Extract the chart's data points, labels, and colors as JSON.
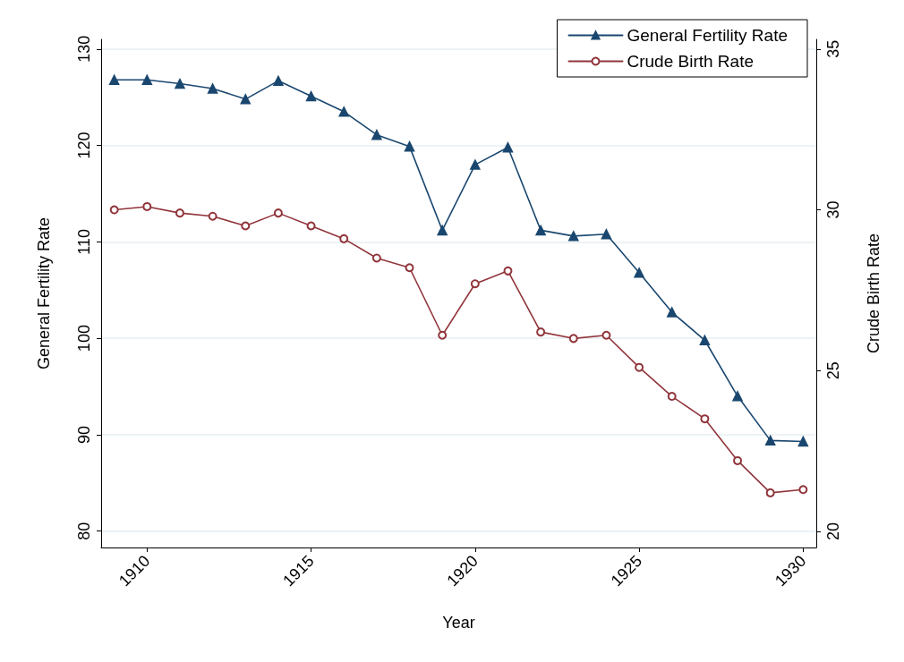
{
  "chart_data": {
    "type": "line",
    "xlabel": "Year",
    "ylabel": "General Fertility Rate",
    "y2label": "Crude Birth Rate",
    "x": [
      1909,
      1910,
      1911,
      1912,
      1913,
      1914,
      1915,
      1916,
      1917,
      1918,
      1919,
      1920,
      1921,
      1922,
      1923,
      1924,
      1925,
      1926,
      1927,
      1928,
      1929,
      1930
    ],
    "series": [
      {
        "name": "General Fertility Rate",
        "color": "#1a476f",
        "marker": "triangle",
        "values": [
          126.8,
          126.8,
          126.4,
          125.9,
          124.8,
          126.7,
          125.1,
          123.5,
          121.1,
          119.9,
          111.2,
          118.0,
          119.8,
          111.2,
          110.6,
          110.8,
          106.8,
          102.7,
          99.8,
          94.0,
          89.4,
          89.3
        ]
      },
      {
        "name": "Crude Birth Rate",
        "color": "#90353b",
        "marker": "circle",
        "axis": "y2",
        "values": [
          30.0,
          30.1,
          29.9,
          29.8,
          29.5,
          29.9,
          29.5,
          29.1,
          28.5,
          28.2,
          26.1,
          27.7,
          28.1,
          26.2,
          26.0,
          26.1,
          25.1,
          24.2,
          23.5,
          22.2,
          21.2,
          21.3
        ]
      }
    ],
    "xlim": [
      1908.6,
      1930.4
    ],
    "xticks": [
      1910,
      1915,
      1920,
      1925,
      1930
    ],
    "ylim": [
      78.3,
      131
    ],
    "yticks": [
      80,
      90,
      100,
      110,
      120,
      130
    ],
    "y2lim": [
      19.5,
      35.3
    ],
    "y2ticks": [
      20,
      25,
      30,
      35
    ],
    "grid": "y",
    "legend": "top right",
    "line_style": "solid"
  }
}
